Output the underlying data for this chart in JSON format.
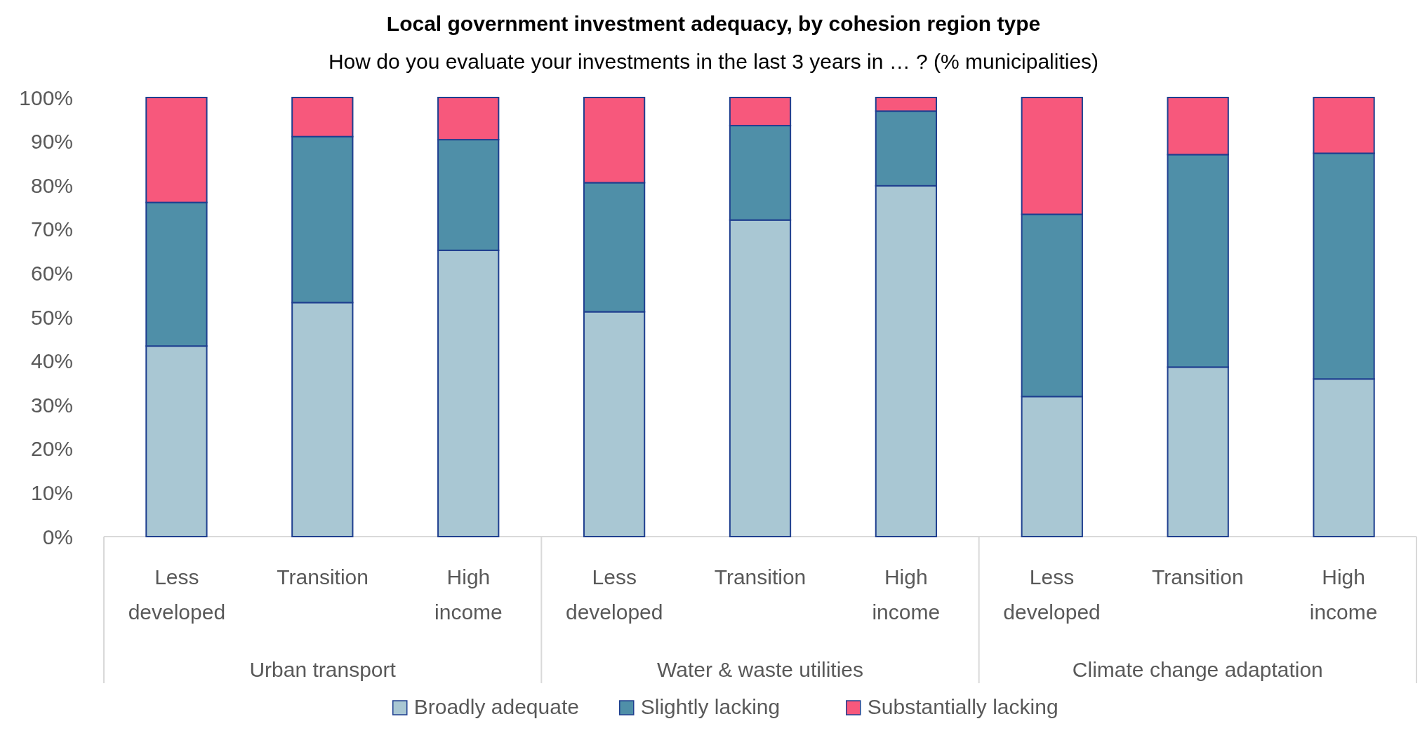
{
  "chart_data": {
    "type": "bar",
    "stacked": true,
    "title": "Local government investment adequacy, by cohesion region type",
    "subtitle": "How do you evaluate your investments in the last 3 years in … ? (% municipalities)",
    "categories": [
      "Less developed",
      "Transition",
      "High income",
      "Less developed",
      "Transition",
      "High income",
      "Less developed",
      "Transition",
      "High income"
    ],
    "annotations": [
      "Urban transport",
      "Water & waste utilities",
      "Climate change adaptation"
    ],
    "series": [
      {
        "name": "Broadly adequate",
        "color": "#a9c7d3",
        "values": [
          43.4,
          53.3,
          65.2,
          51.2,
          72.1,
          79.9,
          31.9,
          38.6,
          35.9
        ]
      },
      {
        "name": "Slightly lacking",
        "color": "#4f8fa8",
        "values": [
          32.7,
          37.8,
          25.2,
          29.4,
          21.5,
          17.0,
          41.5,
          48.4,
          51.4
        ]
      },
      {
        "name": "Substantially lacking",
        "color": "#f7587c",
        "values": [
          23.9,
          8.9,
          9.6,
          19.4,
          6.4,
          3.1,
          26.6,
          13.0,
          12.7
        ]
      }
    ],
    "ylim": [
      0,
      100
    ],
    "yticks": [
      {
        "value": 0,
        "label": "0%"
      },
      {
        "value": 10,
        "label": "10%"
      },
      {
        "value": 20,
        "label": "20%"
      },
      {
        "value": 30,
        "label": "30%"
      },
      {
        "value": 40,
        "label": "40%"
      },
      {
        "value": 50,
        "label": "50%"
      },
      {
        "value": 60,
        "label": "60%"
      },
      {
        "value": 70,
        "label": "70%"
      },
      {
        "value": 80,
        "label": "80%"
      },
      {
        "value": 90,
        "label": "90%"
      },
      {
        "value": 100,
        "label": "100%"
      }
    ],
    "grid": false,
    "legend": "bottom"
  }
}
